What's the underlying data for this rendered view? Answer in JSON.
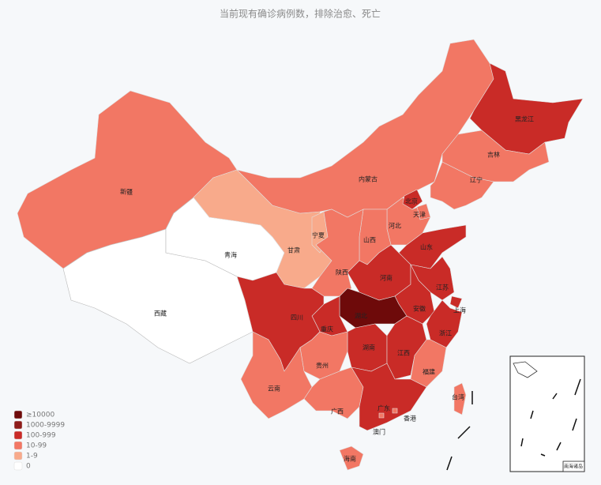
{
  "title": "当前现有确诊病例数，排除治愈、死亡",
  "legend": [
    {
      "label": "≥10000",
      "color": "#6e0a0a"
    },
    {
      "label": "1000-9999",
      "color": "#8e1c1a"
    },
    {
      "label": "100-999",
      "color": "#c92b27"
    },
    {
      "label": "10-99",
      "color": "#f27764"
    },
    {
      "label": "1-9",
      "color": "#f8aa8b"
    },
    {
      "label": "0",
      "color": "#ffffff"
    }
  ],
  "regions": [
    {
      "name": "新疆",
      "color": "#f27764"
    },
    {
      "name": "西藏",
      "color": "#ffffff"
    },
    {
      "name": "青海",
      "color": "#ffffff"
    },
    {
      "name": "甘肃",
      "color": "#f8aa8b"
    },
    {
      "name": "宁夏",
      "color": "#f8aa8b"
    },
    {
      "name": "内蒙古",
      "color": "#f27764"
    },
    {
      "name": "黑龙江",
      "color": "#c92b27"
    },
    {
      "name": "吉林",
      "color": "#f27764"
    },
    {
      "name": "辽宁",
      "color": "#f27764"
    },
    {
      "name": "河北",
      "color": "#f27764"
    },
    {
      "name": "北京",
      "color": "#c92b27"
    },
    {
      "name": "天津",
      "color": "#f27764"
    },
    {
      "name": "山西",
      "color": "#f27764"
    },
    {
      "name": "陕西",
      "color": "#f27764"
    },
    {
      "name": "山东",
      "color": "#c92b27"
    },
    {
      "name": "河南",
      "color": "#c92b27"
    },
    {
      "name": "江苏",
      "color": "#c92b27"
    },
    {
      "name": "安徽",
      "color": "#c92b27"
    },
    {
      "name": "上海",
      "color": "#c92b27"
    },
    {
      "name": "浙江",
      "color": "#c92b27"
    },
    {
      "name": "湖北",
      "color": "#6e0a0a"
    },
    {
      "name": "重庆",
      "color": "#c92b27"
    },
    {
      "name": "四川",
      "color": "#c92b27"
    },
    {
      "name": "湖南",
      "color": "#c92b27"
    },
    {
      "name": "江西",
      "color": "#c92b27"
    },
    {
      "name": "福建",
      "color": "#f27764"
    },
    {
      "name": "贵州",
      "color": "#f27764"
    },
    {
      "name": "云南",
      "color": "#f27764"
    },
    {
      "name": "广西",
      "color": "#f27764"
    },
    {
      "name": "广东",
      "color": "#c92b27"
    },
    {
      "name": "海南",
      "color": "#f27764"
    },
    {
      "name": "台湾",
      "color": "#f27764"
    },
    {
      "name": "香港",
      "color": "#f27764"
    },
    {
      "name": "澳门",
      "color": "#f27764"
    }
  ],
  "inset_label": "南海诸岛"
}
